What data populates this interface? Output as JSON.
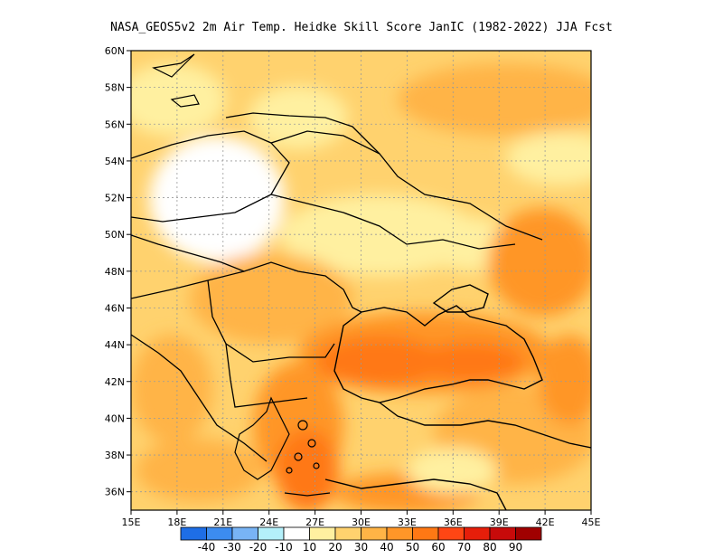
{
  "title": "NASA_GEOS5v2  2m Air Temp. Heidke Skill Score JanIC (1982-2022) JJA Fcst",
  "map": {
    "lon_range": [
      15,
      45
    ],
    "lat_range": [
      35,
      60
    ],
    "x_ticks": [
      "15E",
      "18E",
      "21E",
      "24E",
      "27E",
      "30E",
      "33E",
      "36E",
      "39E",
      "42E",
      "45E"
    ],
    "y_ticks": [
      "36N",
      "38N",
      "40N",
      "42N",
      "44N",
      "46N",
      "48N",
      "50N",
      "52N",
      "54N",
      "56N",
      "58N",
      "60N"
    ],
    "grid": true
  },
  "colorbar": {
    "colors": [
      "#1e6ee6",
      "#3c8cf0",
      "#78b4f5",
      "#b4f0fa",
      "#ffffff",
      "#fff0a0",
      "#ffd26e",
      "#ffb446",
      "#ff9628",
      "#ff7814",
      "#ff4614",
      "#e61e0a",
      "#c80a0a",
      "#a00000"
    ],
    "labels": [
      "-40",
      "-30",
      "-20",
      "-10",
      "10",
      "20",
      "30",
      "40",
      "50",
      "60",
      "70",
      "80",
      "90"
    ]
  }
}
